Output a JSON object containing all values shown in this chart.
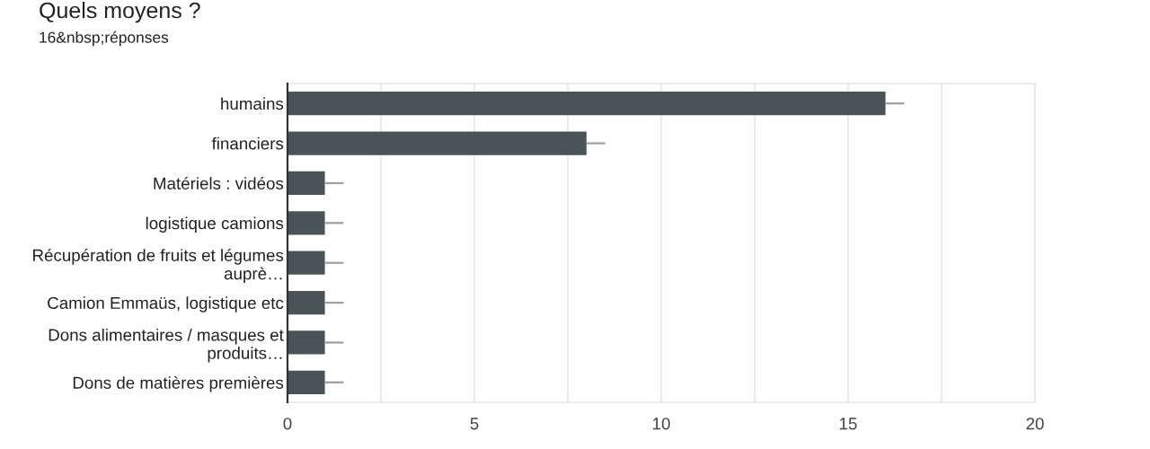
{
  "chart_data": {
    "type": "bar",
    "orientation": "horizontal",
    "title": "Quels moyens ?",
    "subtitle": "16&nbsp;réponses",
    "categories": [
      "humains",
      "financiers",
      "Matériels : vidéos",
      "logistique camions",
      "Récupération de fruits et légumes\nauprè…",
      "Camion Emmaüs, logistique etc",
      "Dons alimentaires / masques et\nproduits…",
      "Dons de matières premières"
    ],
    "values": [
      16,
      8,
      1,
      1,
      1,
      1,
      1,
      1
    ],
    "errors": [
      [
        16,
        16.5
      ],
      [
        8,
        8.5
      ],
      [
        1,
        1.5
      ],
      [
        1,
        1.5
      ],
      [
        1,
        1.5
      ],
      [
        1,
        1.5
      ],
      [
        1,
        1.5
      ],
      [
        1,
        1.5
      ]
    ],
    "color": "#4a5456",
    "xlim": [
      0,
      20
    ],
    "xticks": [
      0,
      {
        "value": 2.5,
        "label": null
      },
      5,
      {
        "value": 7.5,
        "label": null
      },
      10,
      {
        "value": 12.5,
        "label": null
      },
      15,
      {
        "value": 17.5,
        "label": null
      },
      20
    ],
    "grid": "x"
  }
}
